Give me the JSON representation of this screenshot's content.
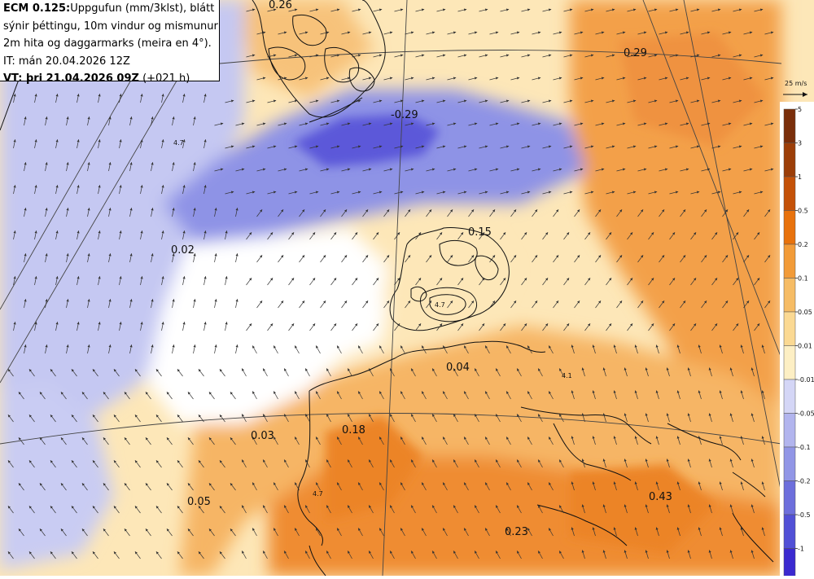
{
  "header": {
    "line1_bold": "ECM 0.125:",
    "line1_rest": "Uppgufun (mm/3klst), blátt",
    "line2": "sýnir þéttingu, 10m vindur og mismunur",
    "line3": "2m hita og daggarmarks (meira en 4°).",
    "line4": "IT: mán 20.04.2026 12Z",
    "line5_bold": "VT: þri 21.04.2026 09Z",
    "line5_rest": "(+021 h)"
  },
  "wind_scale_label": "25 m/s",
  "map_values": [
    {
      "text": "0.26"
    },
    {
      "text": "0.29"
    },
    {
      "text": "-0.29"
    },
    {
      "text": "0.15"
    },
    {
      "text": "0.02"
    },
    {
      "text": "0.04"
    },
    {
      "text": "0.03"
    },
    {
      "text": "0.18"
    },
    {
      "text": "0.05"
    },
    {
      "text": "0.23"
    },
    {
      "text": "0.43"
    }
  ],
  "contour_labels": [
    "4.7",
    "4.7",
    "4.1",
    "4.7"
  ],
  "colorbar_positive": {
    "ticks": [
      "5",
      "3",
      "1",
      "0.5",
      "0.2",
      "0.1",
      "0.05",
      "0.01"
    ],
    "colors": [
      "#7a2e0a",
      "#9c3e08",
      "#c45108",
      "#e8720c",
      "#f29b38",
      "#f6bc65",
      "#fbd993",
      "#fdefc4"
    ]
  },
  "colorbar_negative": {
    "ticks": [
      "-0.01",
      "-0.05",
      "-0.1",
      "-0.2",
      "-0.5",
      "-1"
    ],
    "colors": [
      "#d4d6f6",
      "#b2b5ee",
      "#9196e6",
      "#6d6fdc",
      "#5150d6",
      "#3b2ad0"
    ]
  },
  "colors": {
    "condensation": "#9ea3ea",
    "evap_low": "#fde9bd",
    "evap_mid": "#f7bd6a",
    "evap_high": "#f0923a",
    "contour": "#111111",
    "arrow": "#333333"
  }
}
